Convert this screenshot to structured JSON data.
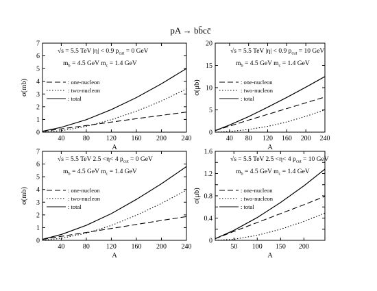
{
  "figure": {
    "title": "pA → bb̄cc̄"
  },
  "chart_data": [
    {
      "type": "line",
      "xlabel": "A",
      "ylabel": "σ(mb)",
      "xlim": [
        10,
        240
      ],
      "ylim": [
        0,
        7
      ],
      "xticks": [
        40,
        80,
        120,
        160,
        200,
        240
      ],
      "yticks": [
        0,
        1,
        2,
        3,
        4,
        5,
        6,
        7
      ],
      "grid": false,
      "legend_position": "left",
      "annotation_line1": "√s = 5.5 TeV   |η| < 0.9   p",
      "annotation_line1_sub": "cut",
      "annotation_line1_tail": " = 0 GeV",
      "annotation_line2": "m",
      "annotation_line2_sub": "b",
      "annotation_line2_mid": " = 4.5 GeV   m",
      "annotation_line2_sub2": "c",
      "annotation_line2_tail": " = 1.4 GeV",
      "series": [
        {
          "name": ": one-nucleon",
          "style": "dashed",
          "x": [
            10,
            40,
            80,
            120,
            160,
            200,
            240
          ],
          "y": [
            0.06,
            0.26,
            0.52,
            0.79,
            1.06,
            1.32,
            1.58
          ]
        },
        {
          "name": ": two-nucleon",
          "style": "dotted",
          "x": [
            10,
            40,
            80,
            120,
            160,
            200,
            240
          ],
          "y": [
            0.0,
            0.12,
            0.45,
            0.98,
            1.65,
            2.45,
            3.4
          ]
        },
        {
          "name": ": total",
          "style": "solid",
          "x": [
            10,
            40,
            80,
            120,
            160,
            200,
            240
          ],
          "y": [
            0.07,
            0.38,
            0.98,
            1.77,
            2.72,
            3.8,
            5.0
          ]
        }
      ]
    },
    {
      "type": "line",
      "xlabel": "A",
      "ylabel": "σ(μb)",
      "xlim": [
        10,
        240
      ],
      "ylim": [
        0,
        20
      ],
      "xticks": [
        40,
        80,
        120,
        160,
        200,
        240
      ],
      "yticks": [
        0,
        5,
        10,
        15,
        20
      ],
      "grid": false,
      "legend_position": "left",
      "annotation_line1": "√s = 5.5 TeV   |η| < 0.9   p",
      "annotation_line1_sub": "cut",
      "annotation_line1_tail": " = 10 GeV",
      "annotation_line2": "m",
      "annotation_line2_sub": "b",
      "annotation_line2_mid": " = 4.5 GeV   m",
      "annotation_line2_sub2": "c",
      "annotation_line2_tail": " = 1.4 GeV",
      "series": [
        {
          "name": ": one-nucleon",
          "style": "dashed",
          "x": [
            10,
            40,
            80,
            120,
            160,
            200,
            240
          ],
          "y": [
            0.35,
            1.35,
            2.7,
            4.0,
            5.3,
            6.6,
            7.9
          ]
        },
        {
          "name": ": two-nucleon",
          "style": "dotted",
          "x": [
            10,
            40,
            80,
            120,
            160,
            200,
            240
          ],
          "y": [
            0.0,
            0.15,
            0.6,
            1.3,
            2.3,
            3.55,
            5.0
          ]
        },
        {
          "name": ": total",
          "style": "solid",
          "x": [
            10,
            40,
            80,
            120,
            160,
            200,
            240
          ],
          "y": [
            0.35,
            1.6,
            3.5,
            5.6,
            7.8,
            10.1,
            12.5
          ]
        }
      ]
    },
    {
      "type": "line",
      "xlabel": "A",
      "ylabel": "σ(mb)",
      "xlim": [
        10,
        240
      ],
      "ylim": [
        0,
        7
      ],
      "xticks": [
        40,
        80,
        120,
        160,
        200,
        240
      ],
      "yticks": [
        0,
        1,
        2,
        3,
        4,
        5,
        6,
        7
      ],
      "grid": false,
      "legend_position": "left",
      "annotation_line1": "√s = 5.5 TeV   2.5 <η< 4   p",
      "annotation_line1_sub": "cut",
      "annotation_line1_tail": " = 0 GeV",
      "annotation_line2": "m",
      "annotation_line2_sub": "b",
      "annotation_line2_mid": " = 4.5 GeV   m",
      "annotation_line2_sub2": "c",
      "annotation_line2_tail": " = 1.4 GeV",
      "series": [
        {
          "name": ": one-nucleon",
          "style": "dashed",
          "x": [
            10,
            40,
            80,
            120,
            160,
            200,
            240
          ],
          "y": [
            0.07,
            0.31,
            0.62,
            0.93,
            1.25,
            1.56,
            1.87
          ]
        },
        {
          "name": ": two-nucleon",
          "style": "dotted",
          "x": [
            10,
            40,
            80,
            120,
            160,
            200,
            240
          ],
          "y": [
            0.0,
            0.16,
            0.56,
            1.17,
            1.97,
            2.9,
            3.95
          ]
        },
        {
          "name": ": total",
          "style": "solid",
          "x": [
            10,
            40,
            80,
            120,
            160,
            200,
            240
          ],
          "y": [
            0.08,
            0.46,
            1.18,
            2.1,
            3.22,
            4.45,
            5.8
          ]
        }
      ]
    },
    {
      "type": "line",
      "xlabel": "A",
      "ylabel": "σ(μb)",
      "xlim": [
        10,
        245
      ],
      "ylim": [
        0,
        1.6
      ],
      "xticks": [
        50,
        100,
        150,
        200
      ],
      "yticks": [
        0,
        0.2,
        0.4,
        0.6,
        0.8,
        1,
        1.2,
        1.4,
        1.6
      ],
      "ytick_labels": [
        "0",
        "",
        "0.4",
        "",
        "0.8",
        "",
        "1.2",
        "",
        "1.6"
      ],
      "grid": false,
      "legend_position": "left",
      "annotation_line1": "√s = 5.5 TeV   2.5 <η< 4   p",
      "annotation_line1_sub": "cut",
      "annotation_line1_tail": " = 10 GeV",
      "annotation_line2": "m",
      "annotation_line2_sub": "b",
      "annotation_line2_mid": " = 4.5 GeV   m",
      "annotation_line2_sub2": "c",
      "annotation_line2_tail": " = 1.4 GeV",
      "series": [
        {
          "name": ": one-nucleon",
          "style": "dashed",
          "x": [
            10,
            50,
            100,
            150,
            200,
            245
          ],
          "y": [
            0.03,
            0.16,
            0.32,
            0.48,
            0.64,
            0.79
          ]
        },
        {
          "name": ": two-nucleon",
          "style": "dotted",
          "x": [
            10,
            50,
            100,
            150,
            200,
            245
          ],
          "y": [
            0.0,
            0.02,
            0.09,
            0.2,
            0.34,
            0.49
          ]
        },
        {
          "name": ": total",
          "style": "solid",
          "x": [
            10,
            50,
            100,
            150,
            200,
            245
          ],
          "y": [
            0.03,
            0.18,
            0.41,
            0.68,
            0.98,
            1.28
          ]
        }
      ]
    }
  ]
}
